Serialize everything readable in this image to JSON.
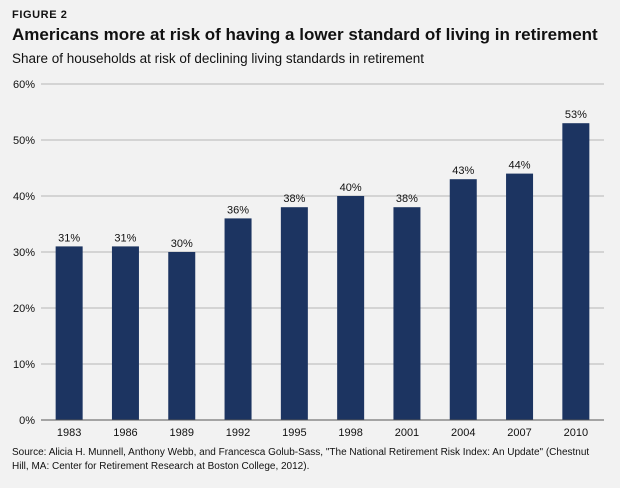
{
  "figure_label": "FIGURE 2",
  "chart_data": {
    "type": "bar",
    "title": "Americans more at risk of having a lower standard of living in retirement",
    "subtitle": "Share of households at risk of declining living standards in retirement",
    "categories": [
      "1983",
      "1986",
      "1989",
      "1992",
      "1995",
      "1998",
      "2001",
      "2004",
      "2007",
      "2010"
    ],
    "values": [
      31,
      31,
      30,
      36,
      38,
      40,
      38,
      43,
      44,
      53
    ],
    "value_labels": [
      "31%",
      "31%",
      "30%",
      "36%",
      "38%",
      "40%",
      "38%",
      "43%",
      "44%",
      "53%"
    ],
    "y_ticks": [
      0,
      10,
      20,
      30,
      40,
      50,
      60
    ],
    "y_tick_labels": [
      "0%",
      "10%",
      "20%",
      "30%",
      "40%",
      "50%",
      "60%"
    ],
    "ylim": [
      0,
      60
    ],
    "xlabel": "",
    "ylabel": "",
    "grid": true,
    "bar_color": "#1c3461",
    "grid_color": "#b5b5b5"
  },
  "source": "Source: Alicia H.  Munnell, Anthony Webb, and Francesca Golub-Sass, \"The National Retirement Risk Index: An Update\" (Chestnut Hill, MA: Center for Retirement Research at Boston College, 2012)."
}
